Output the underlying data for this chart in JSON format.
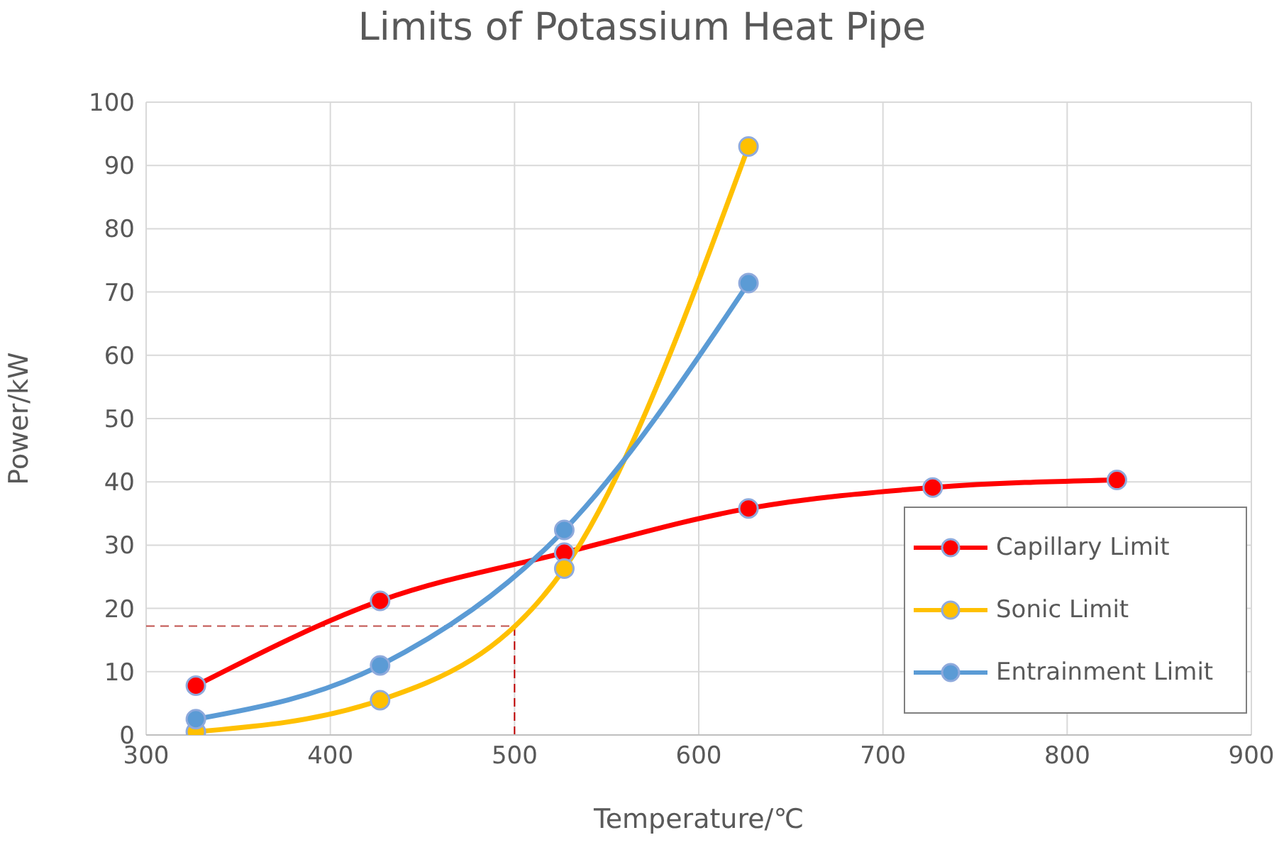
{
  "chart_data": {
    "type": "line",
    "title": "Limits of Potassium Heat Pipe",
    "xlabel": "Temperature/℃",
    "ylabel": "Power/kW",
    "series": [
      {
        "name": "Capillary Limit",
        "color": "#ff0000",
        "x": [
          327,
          427,
          527,
          627,
          727,
          827
        ],
        "values": [
          7.8,
          21.2,
          28.8,
          35.8,
          39.1,
          40.3
        ]
      },
      {
        "name": "Sonic Limit",
        "color": "#ffc000",
        "x": [
          327,
          427,
          527,
          627
        ],
        "values": [
          0.5,
          5.5,
          26.3,
          93
        ]
      },
      {
        "name": "Entrainment Limit",
        "color": "#5b9bd5",
        "x": [
          327,
          427,
          527,
          627
        ],
        "values": [
          2.5,
          11,
          32.4,
          71.4
        ]
      }
    ],
    "xlim": [
      300,
      900
    ],
    "xticks": [
      300,
      400,
      500,
      600,
      700,
      800,
      900
    ],
    "ylim": [
      0,
      100
    ],
    "yticks": [
      0,
      10,
      20,
      30,
      40,
      50,
      60,
      70,
      80,
      90,
      100
    ],
    "ref_lines": [
      {
        "axis": "y",
        "value": 17.2,
        "color": "#c0504d",
        "line_style": "dashed"
      },
      {
        "axis": "x",
        "value": 500,
        "color": "#c00000",
        "line_style": "dashed"
      }
    ],
    "grid": true,
    "legend": "bottom right",
    "marker": "circle",
    "line_style": "solid"
  }
}
